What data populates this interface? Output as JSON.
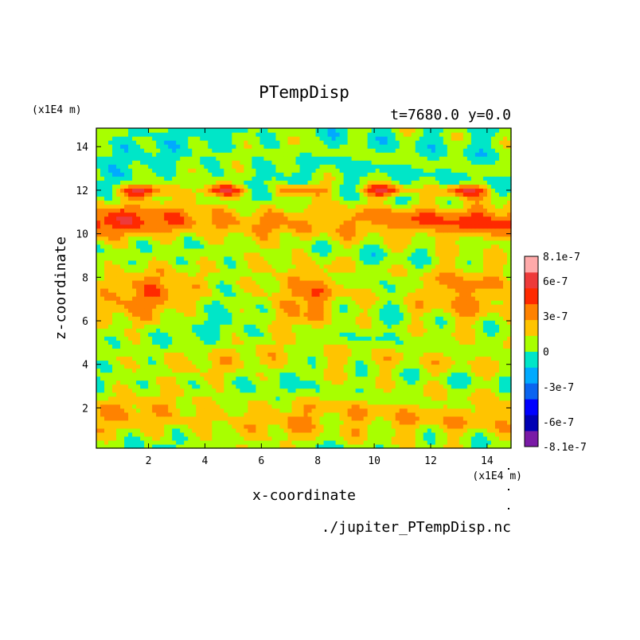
{
  "chart_data": {
    "type": "heatmap",
    "title": "PTempDisp",
    "subtitle": "t=7680.0 y=0.0",
    "xlabel": "x-coordinate",
    "ylabel": "z-coordinate",
    "x_unit": "(x1E4 m)",
    "y_unit": "(x1E4 m)",
    "file_label": "./jupiter_PTempDisp.nc",
    "xlim": [
      0.15,
      14.85
    ],
    "ylim": [
      0.15,
      14.85
    ],
    "x_ticks": [
      "2",
      "4",
      "6",
      "8",
      "10",
      "12",
      "14"
    ],
    "y_ticks": [
      "2",
      "4",
      "6",
      "8",
      "10",
      "12",
      "14"
    ],
    "x_tick_values": [
      2,
      4,
      6,
      8,
      10,
      12,
      14
    ],
    "y_tick_values": [
      2,
      4,
      6,
      8,
      10,
      12,
      14
    ],
    "colorbar": {
      "labels": [
        "8.1e-7",
        "6e-7",
        "3e-7",
        "0",
        "-3e-7",
        "-6e-7",
        "-8.1e-7"
      ],
      "label_values": [
        8.1e-07,
        6e-07,
        3e-07,
        0,
        -3e-07,
        -6e-07,
        -8.1e-07
      ],
      "levels": [
        -8.1e-07,
        -7.5e-07,
        -6e-07,
        -4.5e-07,
        -3e-07,
        -1.5e-07,
        0,
        1.5e-07,
        3e-07,
        4.5e-07,
        6e-07,
        7.5e-07,
        8.1e-07
      ],
      "colors": [
        "#7a1aa6",
        "#0000b4",
        "#0000ff",
        "#0a64f0",
        "#00aaff",
        "#00e6c8",
        "#a8ff00",
        "#ffc400",
        "#ff8200",
        "#ff2a00",
        "#ee3a3a",
        "#ffaaaa"
      ]
    },
    "field_summary": [
      {
        "z_range": [
          0.15,
          2.9
        ],
        "value": 2.2e-07,
        "description": "band of positive displacement near bottom"
      },
      {
        "z_range": [
          2.9,
          5.3
        ],
        "value": 7e-08,
        "description": "near-zero with scattered positive patches"
      },
      {
        "z_range": [
          5.3,
          9.5
        ],
        "value": 4e-07,
        "description": "orange plume structures"
      },
      {
        "z_range": [
          9.5,
          12.3
        ],
        "value": 6.5e-07,
        "description": "red filaments, maxima near edges"
      },
      {
        "z_range": [
          12.3,
          14.85
        ],
        "value": 3e-08,
        "description": "near-zero upper region"
      }
    ],
    "grid": false,
    "legend": "colorbar-right"
  }
}
